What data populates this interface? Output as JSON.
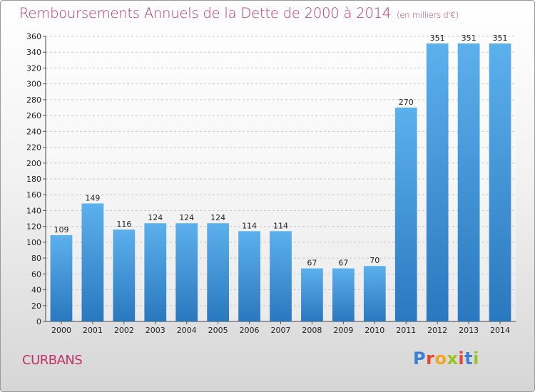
{
  "header": {
    "title": "Remboursements Annuels de la Dette de 2000 à 2014",
    "subtitle": "(en milliers d'€)"
  },
  "footer": {
    "commune": "CURBANS",
    "logo_letters": [
      "P",
      "r",
      "o",
      "x",
      "i",
      "t",
      "i"
    ],
    "logo_colors": [
      "#3a7fd5",
      "#e8452c",
      "#f5a623",
      "#9bc31c",
      "#e8452c",
      "#3a7fd5",
      "#9bc31c"
    ]
  },
  "colors": {
    "bar": "#3d8fd6",
    "title": "#c0306a"
  },
  "chart_data": {
    "type": "bar",
    "title": "Remboursements Annuels de la Dette de 2000 à 2014",
    "subtitle": "(en milliers d'€)",
    "categories": [
      "2000",
      "2001",
      "2002",
      "2003",
      "2004",
      "2005",
      "2006",
      "2007",
      "2008",
      "2009",
      "2010",
      "2011",
      "2012",
      "2013",
      "2014"
    ],
    "values": [
      109,
      149,
      116,
      124,
      124,
      124,
      114,
      114,
      67,
      67,
      70,
      270,
      351,
      351,
      351
    ],
    "value_labels": [
      "109",
      "149",
      "116",
      "124",
      "124",
      "124",
      "114",
      "114",
      "67",
      "67",
      "70",
      "270",
      "351",
      "351",
      "351"
    ],
    "xlabel": "",
    "ylabel": "",
    "ylim": [
      0,
      360
    ],
    "yticks": [
      0,
      20,
      40,
      60,
      80,
      100,
      120,
      140,
      160,
      180,
      200,
      220,
      240,
      260,
      280,
      300,
      320,
      340,
      360
    ],
    "grid": true,
    "legend": "none"
  }
}
